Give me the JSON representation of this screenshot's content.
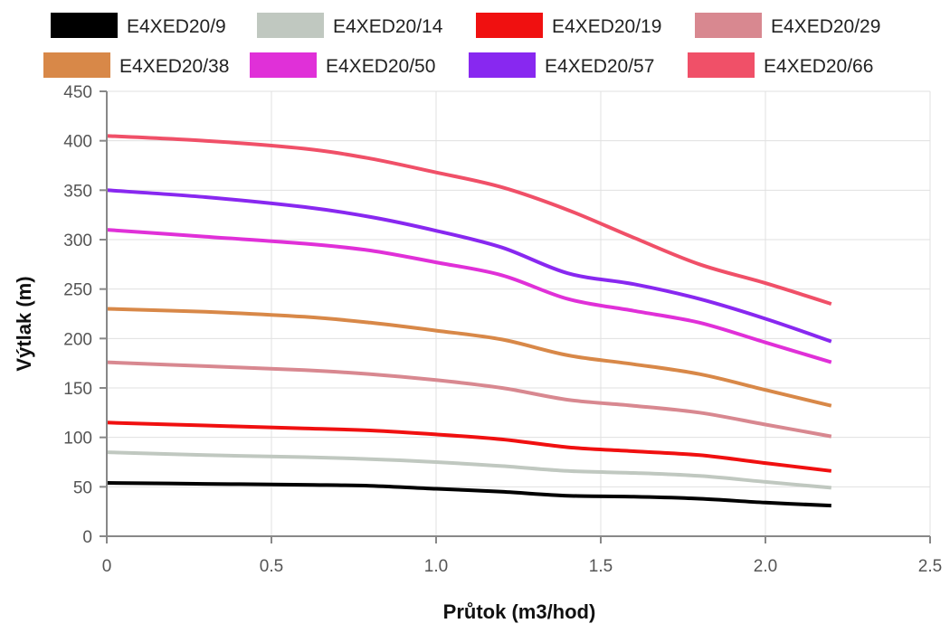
{
  "chart_data": {
    "type": "line",
    "xlabel": "Průtok (m3/hod)",
    "ylabel": "Výtlak (m)",
    "xlim": [
      0,
      2.5
    ],
    "ylim": [
      0,
      450
    ],
    "x_ticks": [
      0,
      0.5,
      1.0,
      1.5,
      2.0,
      2.5
    ],
    "x_tick_labels": [
      "0",
      "0.5",
      "1.0",
      "1.5",
      "2.0",
      "2.5"
    ],
    "y_ticks": [
      0,
      50,
      100,
      150,
      200,
      250,
      300,
      350,
      400,
      450
    ],
    "y_tick_labels": [
      "0",
      "50",
      "100",
      "150",
      "200",
      "250",
      "300",
      "350",
      "400",
      "450"
    ],
    "grid": true,
    "legend_position": "top",
    "x": [
      0,
      0.3,
      0.6,
      0.8,
      1.0,
      1.2,
      1.4,
      1.6,
      1.8,
      2.0,
      2.2
    ],
    "series": [
      {
        "name": "E4XED20/9",
        "color": "#000000",
        "values": [
          54,
          53,
          52,
          51,
          48,
          45,
          41,
          40,
          38,
          34,
          31
        ]
      },
      {
        "name": "E4XED20/14",
        "color": "#c0c8c0",
        "values": [
          85,
          82,
          80,
          78,
          75,
          71,
          66,
          64,
          61,
          55,
          49
        ]
      },
      {
        "name": "E4XED20/19",
        "color": "#f01010",
        "values": [
          115,
          112,
          109,
          107,
          103,
          98,
          90,
          86,
          82,
          74,
          66
        ]
      },
      {
        "name": "E4XED20/29",
        "color": "#d88890",
        "values": [
          176,
          172,
          168,
          164,
          158,
          150,
          138,
          132,
          125,
          113,
          101
        ]
      },
      {
        "name": "E4XED20/38",
        "color": "#d88848",
        "values": [
          230,
          227,
          222,
          216,
          208,
          199,
          183,
          174,
          164,
          148,
          132
        ]
      },
      {
        "name": "E4XED20/50",
        "color": "#e030d8",
        "values": [
          310,
          303,
          296,
          289,
          277,
          264,
          240,
          228,
          216,
          196,
          176
        ]
      },
      {
        "name": "E4XED20/57",
        "color": "#8828f0",
        "values": [
          350,
          343,
          333,
          323,
          309,
          292,
          266,
          255,
          240,
          220,
          197
        ]
      },
      {
        "name": "E4XED20/66",
        "color": "#f05068",
        "values": [
          405,
          400,
          392,
          382,
          368,
          353,
          330,
          302,
          275,
          256,
          235
        ]
      }
    ]
  }
}
